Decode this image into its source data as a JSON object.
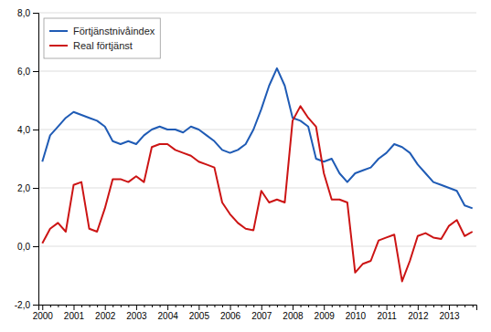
{
  "chart_data": {
    "type": "line",
    "categories": [
      "2000",
      null,
      null,
      null,
      "2001",
      null,
      null,
      null,
      "2002",
      null,
      null,
      null,
      "2003",
      null,
      null,
      null,
      "2004",
      null,
      null,
      null,
      "2005",
      null,
      null,
      null,
      "2006",
      null,
      null,
      null,
      "2007",
      null,
      null,
      null,
      "2008",
      null,
      null,
      null,
      "2009",
      null,
      null,
      null,
      "2010",
      null,
      null,
      null,
      "2011",
      null,
      null,
      null,
      "2012",
      null,
      null,
      null,
      "2013",
      null,
      null,
      null
    ],
    "series": [
      {
        "name": "Förtjänstnivåindex",
        "color": "#1f5bb5",
        "values": [
          2.9,
          3.8,
          4.1,
          4.4,
          4.6,
          4.5,
          4.4,
          4.3,
          4.1,
          3.6,
          3.5,
          3.6,
          3.5,
          3.8,
          4.0,
          4.1,
          4.0,
          4.0,
          3.9,
          4.1,
          4.0,
          3.8,
          3.6,
          3.3,
          3.2,
          3.3,
          3.5,
          4.0,
          4.7,
          5.5,
          6.1,
          5.5,
          4.4,
          4.3,
          4.1,
          3.0,
          2.9,
          3.0,
          2.5,
          2.2,
          2.5,
          2.6,
          2.7,
          3.0,
          3.2,
          3.5,
          3.4,
          3.2,
          2.8,
          2.5,
          2.2,
          2.1,
          2.0,
          1.9,
          1.4,
          1.3
        ]
      },
      {
        "name": "Real förtjänst",
        "color": "#cc1414",
        "values": [
          0.1,
          0.6,
          0.8,
          0.5,
          2.1,
          2.2,
          0.6,
          0.5,
          1.3,
          2.3,
          2.3,
          2.2,
          2.4,
          2.2,
          3.4,
          3.5,
          3.5,
          3.3,
          3.2,
          3.1,
          2.9,
          2.8,
          2.7,
          1.5,
          1.1,
          0.8,
          0.6,
          0.55,
          1.9,
          1.5,
          1.6,
          1.5,
          4.3,
          4.8,
          4.4,
          4.1,
          2.5,
          1.6,
          1.6,
          1.5,
          -0.9,
          -0.6,
          -0.5,
          0.2,
          0.3,
          0.4,
          -1.2,
          -0.5,
          0.35,
          0.45,
          0.3,
          0.25,
          0.7,
          0.9,
          0.35,
          0.5
        ]
      }
    ],
    "ylim": [
      -2.0,
      8.0
    ],
    "yticks": [
      {
        "value": -2.0,
        "label": "-2,0"
      },
      {
        "value": 0.0,
        "label": "0,0"
      },
      {
        "value": 2.0,
        "label": "2,0"
      },
      {
        "value": 4.0,
        "label": "4,0"
      },
      {
        "value": 6.0,
        "label": "6,0"
      },
      {
        "value": 8.0,
        "label": "8,0"
      }
    ],
    "grid": true,
    "legend": "upper left"
  }
}
